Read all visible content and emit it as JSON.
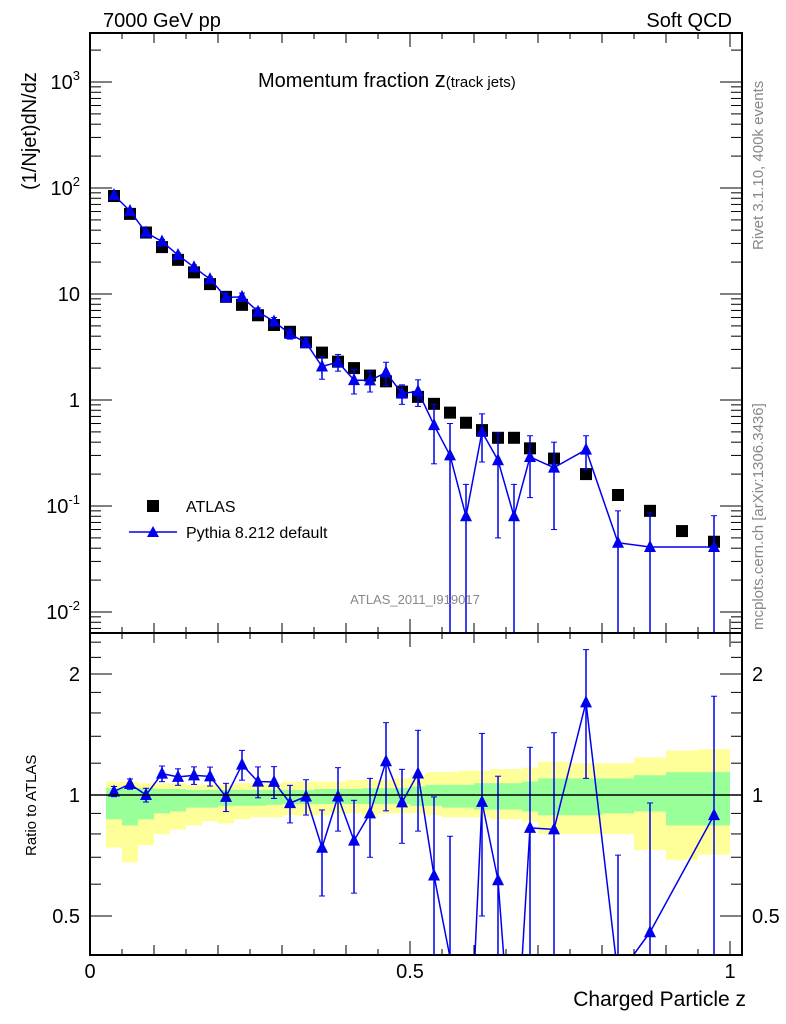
{
  "header": {
    "left": "7000 GeV pp",
    "right": "Soft QCD"
  },
  "side_text": {
    "rivet": "Rivet 3.1.10,  400k events",
    "mcplots": "mcplots.cern.ch [arXiv:1306.3436]"
  },
  "chart_data": {
    "type": "scatter",
    "title": "Momentum fraction",
    "title_var": "z",
    "title_sub": "(track jets)",
    "analysis_label": "ATLAS_2011_I919017",
    "xlabel": "Charged Particle z",
    "ylabel": "(1/Njet)dN/dz",
    "ratio_ylabel": "Ratio to ATLAS",
    "xlim": [
      0,
      1
    ],
    "ylim": [
      0.0063,
      2950
    ],
    "yscale": "log",
    "ratio_ylim": [
      0.4,
      2.53
    ],
    "ratio_yscale": "log",
    "x_tick_labels": [
      "0",
      "0.5",
      "1"
    ],
    "y_tick_labels": [
      {
        "base": "10",
        "exp": "-2"
      },
      {
        "base": "10",
        "exp": "-1"
      },
      {
        "base": "1",
        "exp": ""
      },
      {
        "base": "10",
        "exp": ""
      },
      {
        "base": "10",
        "exp": "2"
      },
      {
        "base": "10",
        "exp": "3"
      }
    ],
    "ratio_tick_labels": [
      "0.5",
      "1",
      "2"
    ],
    "legend": {
      "placement": "lower-left",
      "entries": [
        "ATLAS",
        "Pythia 8.212 default"
      ]
    },
    "colors": {
      "atlas": "#000000",
      "pythia": "#0000ee",
      "band_inner": "#99ff99",
      "band_outer": "#ffff99",
      "meta_text": "#888888"
    },
    "bin_edges": [
      0.025,
      0.05,
      0.075,
      0.1,
      0.125,
      0.15,
      0.175,
      0.2,
      0.225,
      0.25,
      0.275,
      0.3,
      0.325,
      0.35,
      0.375,
      0.4,
      0.425,
      0.45,
      0.475,
      0.5,
      0.525,
      0.55,
      0.575,
      0.6,
      0.625,
      0.65,
      0.675,
      0.7,
      0.75,
      0.8,
      0.85,
      0.9,
      0.95,
      1.0
    ],
    "series": [
      {
        "name": "ATLAS",
        "values": [
          84,
          57,
          38,
          27.7,
          21,
          16,
          12.4,
          9.4,
          7.9,
          6.3,
          5.1,
          4.4,
          3.5,
          2.8,
          2.3,
          2.0,
          1.7,
          1.5,
          1.2,
          1.07,
          0.92,
          0.76,
          0.61,
          0.52,
          0.44,
          0.44,
          0.35,
          0.28,
          0.2,
          0.127,
          0.09,
          0.058,
          0.046
        ],
        "band_inner_lo": [
          0.87,
          0.84,
          0.87,
          0.9,
          0.91,
          0.93,
          0.93,
          0.94,
          0.94,
          0.94,
          0.945,
          0.95,
          0.95,
          0.95,
          0.95,
          0.95,
          0.95,
          0.95,
          0.95,
          0.94,
          0.94,
          0.93,
          0.93,
          0.92,
          0.92,
          0.92,
          0.91,
          0.89,
          0.89,
          0.9,
          0.91,
          0.84,
          0.84
        ],
        "band_inner_hi": [
          1.04,
          1.04,
          1.04,
          1.035,
          1.035,
          1.03,
          1.03,
          1.03,
          1.03,
          1.03,
          1.03,
          1.03,
          1.03,
          1.035,
          1.035,
          1.035,
          1.04,
          1.04,
          1.04,
          1.05,
          1.06,
          1.06,
          1.06,
          1.07,
          1.07,
          1.07,
          1.08,
          1.1,
          1.1,
          1.1,
          1.12,
          1.14,
          1.14
        ],
        "band_outer_lo": [
          0.74,
          0.68,
          0.75,
          0.8,
          0.82,
          0.84,
          0.86,
          0.85,
          0.87,
          0.88,
          0.88,
          0.89,
          0.89,
          0.89,
          0.9,
          0.9,
          0.88,
          0.9,
          0.9,
          0.9,
          0.89,
          0.88,
          0.88,
          0.88,
          0.87,
          0.87,
          0.86,
          0.8,
          0.8,
          0.8,
          0.73,
          0.69,
          0.71
        ],
        "band_outer_hi": [
          1.08,
          1.08,
          1.07,
          1.07,
          1.07,
          1.06,
          1.06,
          1.06,
          1.07,
          1.07,
          1.07,
          1.08,
          1.08,
          1.08,
          1.08,
          1.09,
          1.09,
          1.09,
          1.1,
          1.12,
          1.14,
          1.14,
          1.15,
          1.15,
          1.16,
          1.16,
          1.17,
          1.21,
          1.2,
          1.2,
          1.24,
          1.29,
          1.3
        ]
      },
      {
        "name": "Pythia 8.212 default",
        "values": [
          85.7,
          60.7,
          38,
          31.3,
          23.3,
          17.9,
          13.8,
          9.3,
          9.4,
          6.8,
          5.5,
          4.2,
          3.47,
          2.07,
          2.28,
          1.54,
          1.53,
          1.82,
          1.15,
          1.21,
          0.58,
          0.3,
          0.08,
          0.5,
          0.27,
          0.08,
          0.29,
          0.23,
          0.34,
          0.045,
          0.041,
          null,
          0.041
        ],
        "errors": [
          2.5,
          1.8,
          1.5,
          1.4,
          1.1,
          0.9,
          0.75,
          0.75,
          0.8,
          0.6,
          0.5,
          0.45,
          0.35,
          0.5,
          0.41,
          0.4,
          0.34,
          0.45,
          0.24,
          0.34,
          0.33,
          0.3,
          0.08,
          0.24,
          0.22,
          0.08,
          0.17,
          0.17,
          0.12,
          0.045,
          0.045,
          null,
          0.04
        ]
      }
    ]
  }
}
